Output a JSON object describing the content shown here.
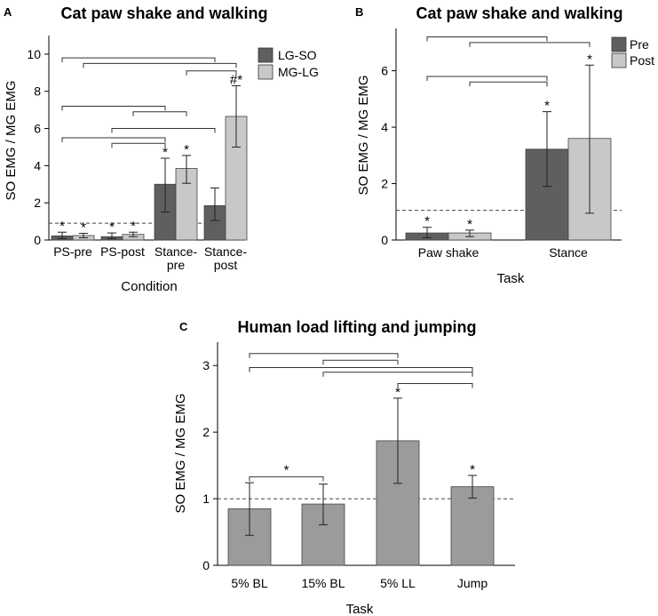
{
  "panels": [
    {
      "letter": "A",
      "chart_data": {
        "type": "bar",
        "title": "Cat paw shake and walking",
        "xlabel": "Condition",
        "ylabel": "SO EMG / MG EMG",
        "ylim": [
          0,
          11
        ],
        "yticks": [
          0,
          2,
          4,
          6,
          8,
          10
        ],
        "categories": [
          [
            "PS-pre"
          ],
          [
            "PS-post"
          ],
          [
            "Stance-",
            "pre"
          ],
          [
            "Stance-",
            "post"
          ]
        ],
        "reference_line": 0.9,
        "series": [
          {
            "name": "LG-SO",
            "color": "#5f5f5f",
            "values": [
              0.22,
              0.18,
              3.0,
              1.85
            ],
            "err_low": [
              0.08,
              0.08,
              1.5,
              1.05
            ],
            "err_high": [
              0.42,
              0.38,
              4.4,
              2.8
            ],
            "marks": [
              "*",
              "*",
              "*",
              ""
            ]
          },
          {
            "name": "MG-LG",
            "color": "#c8c8c8",
            "values": [
              0.24,
              0.3,
              3.85,
              6.65
            ],
            "err_low": [
              0.12,
              0.18,
              3.05,
              5.0
            ],
            "err_high": [
              0.36,
              0.42,
              4.55,
              8.3
            ],
            "marks": [
              "*",
              "*",
              "*",
              "#*"
            ]
          }
        ],
        "comparison_brackets": [
          {
            "from": [
              0,
              0
            ],
            "to": [
              3,
              0
            ],
            "level": 9.8
          },
          {
            "from": [
              0,
              1
            ],
            "to": [
              3,
              1
            ],
            "level": 9.5
          },
          {
            "from": [
              2,
              1
            ],
            "to": [
              3,
              1
            ],
            "level": 9.1
          },
          {
            "from": [
              0,
              0
            ],
            "to": [
              2,
              0
            ],
            "level": 7.2
          },
          {
            "from": [
              1,
              1
            ],
            "to": [
              2,
              1
            ],
            "level": 6.9
          },
          {
            "from": [
              1,
              0
            ],
            "to": [
              3,
              0
            ],
            "level": 6.0
          },
          {
            "from": [
              0,
              0
            ],
            "to": [
              2,
              0
            ],
            "level": 5.5
          },
          {
            "from": [
              1,
              0
            ],
            "to": [
              2,
              0
            ],
            "level": 5.2
          }
        ]
      }
    },
    {
      "letter": "B",
      "chart_data": {
        "type": "bar",
        "title": "Cat paw shake and walking",
        "xlabel": "Task",
        "ylabel": "SO EMG / MG EMG",
        "ylim": [
          0,
          7.5
        ],
        "yticks": [
          0,
          2,
          4,
          6
        ],
        "categories": [
          [
            "Paw shake"
          ],
          [
            "Stance"
          ]
        ],
        "reference_line": 1.05,
        "series": [
          {
            "name": "Pre",
            "color": "#5f5f5f",
            "values": [
              0.25,
              3.22
            ],
            "err_low": [
              0.08,
              1.9
            ],
            "err_high": [
              0.45,
              4.55
            ],
            "marks": [
              "*",
              "*"
            ]
          },
          {
            "name": "Post",
            "color": "#c8c8c8",
            "values": [
              0.25,
              3.6
            ],
            "err_low": [
              0.12,
              0.95
            ],
            "err_high": [
              0.35,
              6.2
            ],
            "marks": [
              "*",
              "*"
            ]
          }
        ],
        "comparison_brackets": [
          {
            "from": [
              0,
              0
            ],
            "to": [
              1,
              0
            ],
            "level": 7.2
          },
          {
            "from": [
              0,
              1
            ],
            "to": [
              1,
              1
            ],
            "level": 7.0
          },
          {
            "from": [
              0,
              0
            ],
            "to": [
              1,
              0
            ],
            "level": 5.8
          },
          {
            "from": [
              0,
              1
            ],
            "to": [
              1,
              0
            ],
            "level": 5.6
          }
        ]
      }
    },
    {
      "letter": "C",
      "chart_data": {
        "type": "bar",
        "title": "Human load lifting and jumping",
        "xlabel": "Task",
        "ylabel": "SO EMG / MG EMG",
        "ylim": [
          0,
          3.35
        ],
        "yticks": [
          0,
          1,
          2,
          3
        ],
        "categories": [
          [
            "5% BL"
          ],
          [
            "15% BL"
          ],
          [
            "5% LL"
          ],
          [
            "Jump"
          ]
        ],
        "reference_line": 1.0,
        "series": [
          {
            "name": "",
            "color": "#9b9b9b",
            "values": [
              0.85,
              0.92,
              1.87,
              1.18
            ],
            "err_low": [
              0.45,
              0.61,
              1.23,
              1.01
            ],
            "err_high": [
              1.24,
              1.22,
              2.51,
              1.35
            ],
            "marks": [
              "",
              "",
              "*",
              "*"
            ]
          }
        ],
        "comparison_brackets": [
          {
            "from": [
              0,
              0
            ],
            "to": [
              2,
              0
            ],
            "level": 3.18
          },
          {
            "from": [
              1,
              0
            ],
            "to": [
              2,
              0
            ],
            "level": 3.08
          },
          {
            "from": [
              0,
              0
            ],
            "to": [
              3,
              0
            ],
            "level": 2.97
          },
          {
            "from": [
              1,
              0
            ],
            "to": [
              3,
              0
            ],
            "level": 2.9
          },
          {
            "from": [
              2,
              0
            ],
            "to": [
              3,
              0
            ],
            "level": 2.73
          },
          {
            "from": [
              0,
              0
            ],
            "to": [
              1,
              0
            ],
            "level": 1.33,
            "label": "*"
          }
        ]
      }
    }
  ]
}
